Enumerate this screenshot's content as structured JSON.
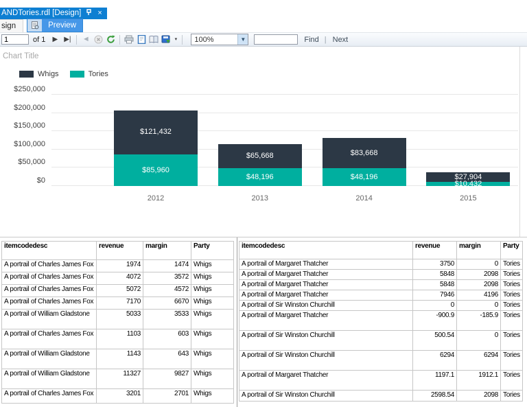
{
  "window": {
    "document_tab_title": "ANDTories.rdl [Design]",
    "close_glyph": "×"
  },
  "view_tabs": {
    "design_partial_label": "sign",
    "preview_label": "Preview"
  },
  "toolbar": {
    "page_number": "1",
    "pages_label": "of 1",
    "next_page_glyph": "▶",
    "last_page_glyph": "▶|",
    "back_glyph": "◄",
    "zoom_value": "100%",
    "zoom_caret_glyph": "▼",
    "export_caret_glyph": "▾",
    "find_value": "",
    "find_label": "Find",
    "find_next_separator": "|",
    "next_label": "Next",
    "icon_names": [
      "next-page-icon",
      "last-page-icon",
      "back-icon",
      "stop-icon",
      "refresh-icon",
      "print-icon",
      "print-layout-icon",
      "page-setup-icon",
      "export-icon",
      "export-dropdown-icon",
      "zoom-dropdown-icon",
      "pin-icon",
      "close-icon",
      "preview-icon"
    ]
  },
  "chart_data": {
    "type": "bar",
    "stacked": true,
    "title": "Chart Title",
    "categories": [
      "2012",
      "2013",
      "2014",
      "2015"
    ],
    "series": [
      {
        "name": "Tories",
        "color": "#00af9f",
        "values": [
          85960,
          48196,
          48196,
          10432
        ],
        "data_labels": [
          "$85,960",
          "$48,196",
          "$48,196",
          "$10,432"
        ]
      },
      {
        "name": "Whigs",
        "color": "#2c3845",
        "values": [
          121432,
          65668,
          83668,
          27904
        ],
        "data_labels": [
          "$121,432",
          "$65,668",
          "$83,668",
          "$27,904"
        ]
      }
    ],
    "legend": [
      {
        "label": "Whigs",
        "color": "#2c3845"
      },
      {
        "label": "Tories",
        "color": "#00af9f"
      }
    ],
    "legend_position": "top-left",
    "y_ticks": [
      "$250,000",
      "$200,000",
      "$150,000",
      "$100,000",
      "$50,000",
      "$0"
    ],
    "ylim": [
      0,
      250000
    ],
    "grid": true
  },
  "tables": {
    "left": {
      "headers": [
        "itemcodedesc",
        "revenue",
        "margin",
        "Party"
      ],
      "rows": [
        [
          "A portrail of Charles James Fox",
          "1974",
          "1474",
          "Whigs"
        ],
        [
          "A portrail of Charles James Fox",
          "4072",
          "3572",
          "Whigs"
        ],
        [
          "A portrail of Charles James Fox",
          "5072",
          "4572",
          "Whigs"
        ],
        [
          "A portrail of Charles James Fox",
          "7170",
          "6670",
          "Whigs"
        ],
        [
          "A portrail of William Gladstone",
          "5033",
          "3533",
          "Whigs"
        ],
        [
          "A portrail of Charles James Fox",
          "1103",
          "603",
          "Whigs"
        ],
        [
          "A portrail of William Gladstone",
          "1143",
          "643",
          "Whigs"
        ],
        [
          "A portrail of William Gladstone",
          "11327",
          "9827",
          "Whigs"
        ],
        [
          "A portrail of Charles James Fox",
          "3201",
          "2701",
          "Whigs"
        ]
      ]
    },
    "right": {
      "headers": [
        "itemcodedesc",
        "revenue",
        "margin",
        "Party"
      ],
      "rows": [
        [
          "A portrail of Margaret Thatcher",
          "3750",
          "0",
          "Tories"
        ],
        [
          "A portrail of Margaret Thatcher",
          "5848",
          "2098",
          "Tories"
        ],
        [
          "A portrail of Margaret Thatcher",
          "5848",
          "2098",
          "Tories"
        ],
        [
          "A portrail of Margaret Thatcher",
          "7946",
          "4196",
          "Tories"
        ],
        [
          "A portrail of Sir Winston Churchill",
          "0",
          "0",
          "Tories"
        ],
        [
          "A portrail of Margaret Thatcher",
          "-900.9",
          "-185.9",
          "Tories"
        ],
        [
          "A portrail of Sir Winston Churchill",
          "500.54",
          "0",
          "Tories"
        ],
        [
          "A portrail of Sir Winston Churchill",
          "6294",
          "6294",
          "Tories"
        ],
        [
          "A portrail of Margaret Thatcher",
          "1197.1",
          "1912.1",
          "Tories"
        ],
        [
          "A portrail of Sir Winston Churchill",
          "2598.54",
          "2098",
          "Tories"
        ]
      ]
    }
  },
  "colors": {
    "whigs": "#2c3845",
    "tories": "#00af9f",
    "active_document_tab": "#0e7fd2",
    "preview_tab_highlight": "#4697e8"
  }
}
